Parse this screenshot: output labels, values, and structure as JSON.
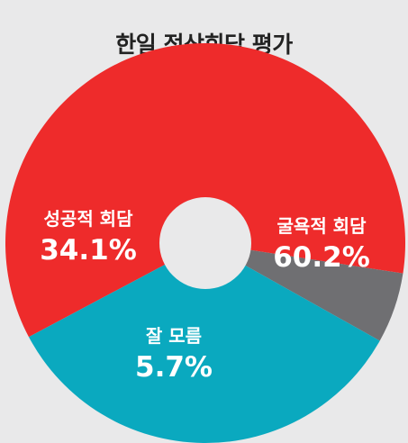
{
  "chart_data": {
    "type": "pie",
    "title": "한일 정상회담 평가",
    "style": "donut",
    "slices": [
      {
        "label": "굴욕적 회담",
        "value": 60.2,
        "display": "60.2%",
        "color": "#ee2b2b"
      },
      {
        "label": "잘 모름",
        "value": 5.7,
        "display": "5.7%",
        "color": "#6f6f72"
      },
      {
        "label": "성공적 회담",
        "value": 34.1,
        "display": "34.1%",
        "color": "#0aa9bf"
      }
    ],
    "background": "#e9e9ea",
    "hole_color": "#e9e9ea"
  }
}
